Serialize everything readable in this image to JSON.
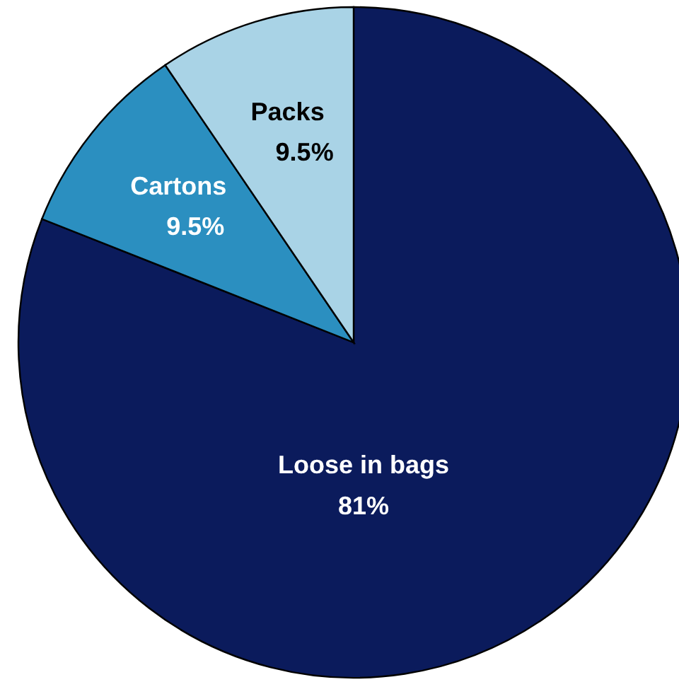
{
  "chart_data": {
    "type": "pie",
    "categories": [
      "Loose in bags",
      "Cartons",
      "Packs"
    ],
    "values": [
      81,
      9.5,
      9.5
    ],
    "colors": [
      "#0b1b5c",
      "#2b8fc0",
      "#a9d3e6"
    ],
    "value_labels": [
      "81%",
      "9.5%",
      "9.5%"
    ]
  }
}
